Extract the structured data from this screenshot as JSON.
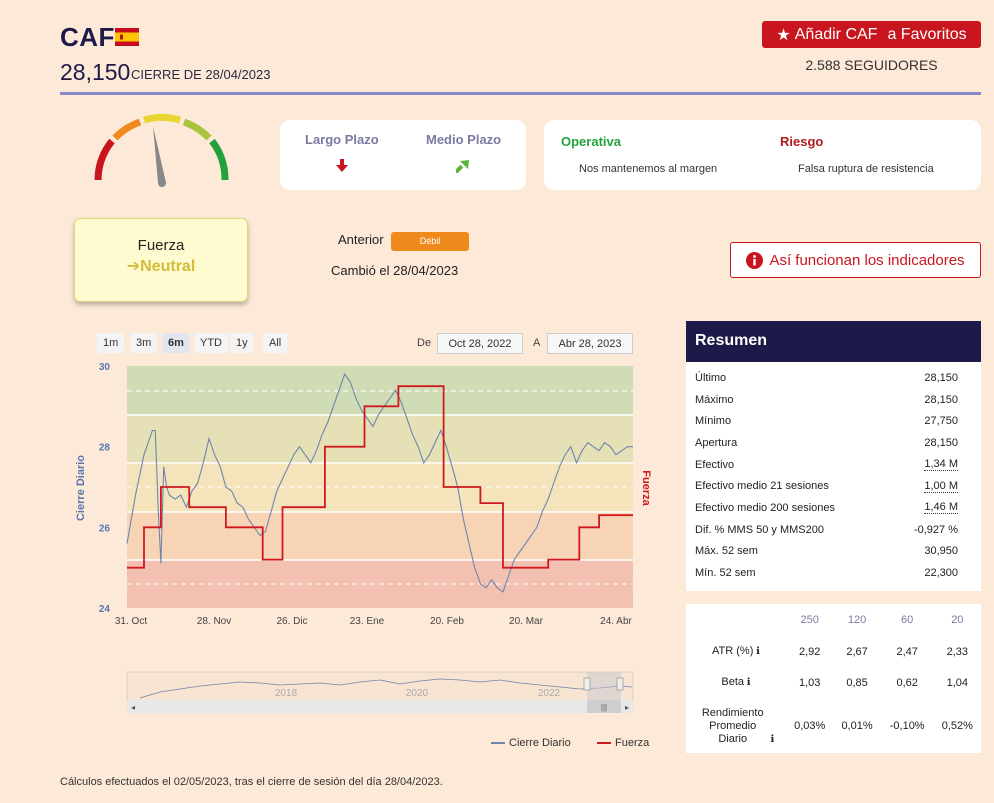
{
  "header": {
    "ticker": "CAF",
    "price": "28,150",
    "close_label": "CIERRE DE 28/04/2023",
    "favorite_label": "Añadir CAF",
    "favorite_suffix": "a Favoritos",
    "followers": "2.588 SEGUIDORES"
  },
  "gauge": {
    "level": 0.45
  },
  "terms": {
    "long_label": "Largo Plazo",
    "long_arrow": "down",
    "medium_label": "Medio Plazo",
    "medium_arrow": "up-right"
  },
  "operation": {
    "operativa_label": "Operativa",
    "operativa_text": "Nos mantenemos al margen",
    "riesgo_label": "Riesgo",
    "riesgo_text": "Falsa ruptura de resistencia"
  },
  "strength": {
    "title": "Fuerza",
    "value": "Neutral",
    "anterior_label": "Anterior",
    "anterior_value": "Débil",
    "changed": "Cambió el 28/04/2023"
  },
  "how_button": "Así funcionan los indicadores",
  "chart_controls": {
    "ranges": [
      "1m",
      "3m",
      "6m",
      "YTD",
      "1y",
      "All"
    ],
    "active_range": "6m",
    "from_label": "De",
    "from_date": "Oct 28, 2022",
    "to_label": "A",
    "to_date": "Abr 28, 2023"
  },
  "chart_data": {
    "type": "line",
    "ylabel": "Cierre Diario",
    "y2label": "Fuerza",
    "ylim": [
      24,
      30
    ],
    "y_ticks": [
      "24",
      "26",
      "28",
      "30"
    ],
    "x_ticks": [
      "31. Oct",
      "28. Nov",
      "26. Dic",
      "23. Ene",
      "20. Feb",
      "20. Mar",
      "24. Abr"
    ],
    "navigator_ticks": [
      "2018",
      "2020",
      "2022"
    ],
    "series": [
      {
        "name": "Cierre Diario",
        "color": "#6f86ad",
        "x": [
          0,
          3,
          6,
          9,
          10,
          11,
          12,
          13,
          14,
          15,
          17,
          19,
          21,
          23,
          25,
          27,
          29,
          31,
          33,
          35,
          37,
          39,
          41,
          43,
          45,
          47,
          49,
          51,
          53,
          55,
          57,
          59,
          61,
          63,
          65,
          67,
          69,
          71,
          73,
          75,
          77,
          79,
          81,
          83,
          85,
          87,
          89,
          91,
          93,
          95,
          97,
          99,
          101,
          103,
          105,
          107,
          109,
          111,
          113,
          115,
          117,
          119,
          121,
          123,
          125,
          127,
          129,
          131,
          133,
          135,
          137,
          139,
          141,
          143,
          145,
          147,
          149,
          151,
          153,
          155,
          157,
          159,
          161,
          163,
          165,
          167,
          169,
          171,
          173,
          175,
          177,
          179
        ],
        "values": [
          25.6,
          26.8,
          27.8,
          28.4,
          28.4,
          26.5,
          25.1,
          27.5,
          27.0,
          26.8,
          26.7,
          26.8,
          26.5,
          26.9,
          27.1,
          27.6,
          28.2,
          27.8,
          27.5,
          27.0,
          26.9,
          26.6,
          26.5,
          26.2,
          26.0,
          25.8,
          25.9,
          26.4,
          26.9,
          27.2,
          27.5,
          27.8,
          28.0,
          27.8,
          27.6,
          27.9,
          28.3,
          28.6,
          29.0,
          29.4,
          29.8,
          29.6,
          29.2,
          28.9,
          28.7,
          28.5,
          28.8,
          29.0,
          29.2,
          29.4,
          29.1,
          28.7,
          28.3,
          28.0,
          27.6,
          27.8,
          28.1,
          28.4,
          28.0,
          27.5,
          27.0,
          26.2,
          25.6,
          25.0,
          24.6,
          24.5,
          24.7,
          24.5,
          24.4,
          24.8,
          25.2,
          25.4,
          25.6,
          25.8,
          26.0,
          26.4,
          26.7,
          27.1,
          27.5,
          27.8,
          28.0,
          27.6,
          27.9,
          28.1,
          28.0,
          27.9,
          28.1,
          28.0,
          27.8,
          27.9,
          28.0,
          28.0
        ]
      },
      {
        "name": "Fuerza",
        "color": "#d0191f",
        "x": [
          0,
          6,
          6,
          12,
          12,
          22,
          22,
          35,
          35,
          48,
          48,
          55,
          55,
          70,
          70,
          84,
          84,
          96,
          96,
          112,
          112,
          125,
          125,
          133,
          133,
          149,
          149,
          160,
          160,
          167,
          167,
          179
        ],
        "values": [
          1,
          1,
          2,
          2,
          3,
          3,
          2.5,
          2.5,
          2,
          2,
          1.2,
          1.2,
          2.5,
          2.5,
          4,
          4,
          5,
          5,
          5.5,
          5.5,
          3,
          3,
          2.6,
          2.6,
          1,
          1,
          1.2,
          1.2,
          2,
          2,
          2.3,
          2.3
        ]
      }
    ],
    "legend": "bottom-right"
  },
  "summary": {
    "title": "Resumen",
    "rows": [
      {
        "label": "Último",
        "value": "28,150"
      },
      {
        "label": "Máximo",
        "value": "28,150"
      },
      {
        "label": "Mínimo",
        "value": "27,750"
      },
      {
        "label": "Apertura",
        "value": "28,150"
      },
      {
        "label": "Efectivo",
        "value": "1,34 M"
      },
      {
        "label": "Efectivo medio 21 sesiones",
        "value": "1,00 M"
      },
      {
        "label": "Efectivo medio 200 sesiones",
        "value": "1,46 M"
      },
      {
        "label": "Dif. % MMS 50 y MMS200",
        "value": "-0,927 %"
      },
      {
        "label": "Máx. 52 sem",
        "value": "30,950"
      },
      {
        "label": "Mín. 52 sem",
        "value": "22,300"
      }
    ]
  },
  "stats": {
    "headers": [
      "250",
      "120",
      "60",
      "20"
    ],
    "rows": [
      {
        "label": "ATR (%)",
        "values": [
          "2,92",
          "2,67",
          "2,47",
          "2,33"
        ]
      },
      {
        "label": "Beta",
        "values": [
          "1,03",
          "0,85",
          "0,62",
          "1,04"
        ]
      },
      {
        "label": "Rendimiento Promedio Diario",
        "values": [
          "0,03%",
          "0,01%",
          "-0,10%",
          "0,52%"
        ]
      }
    ]
  },
  "footnote": "Cálculos efectuados el 02/05/2023, tras el cierre de sesión del día 28/04/2023."
}
